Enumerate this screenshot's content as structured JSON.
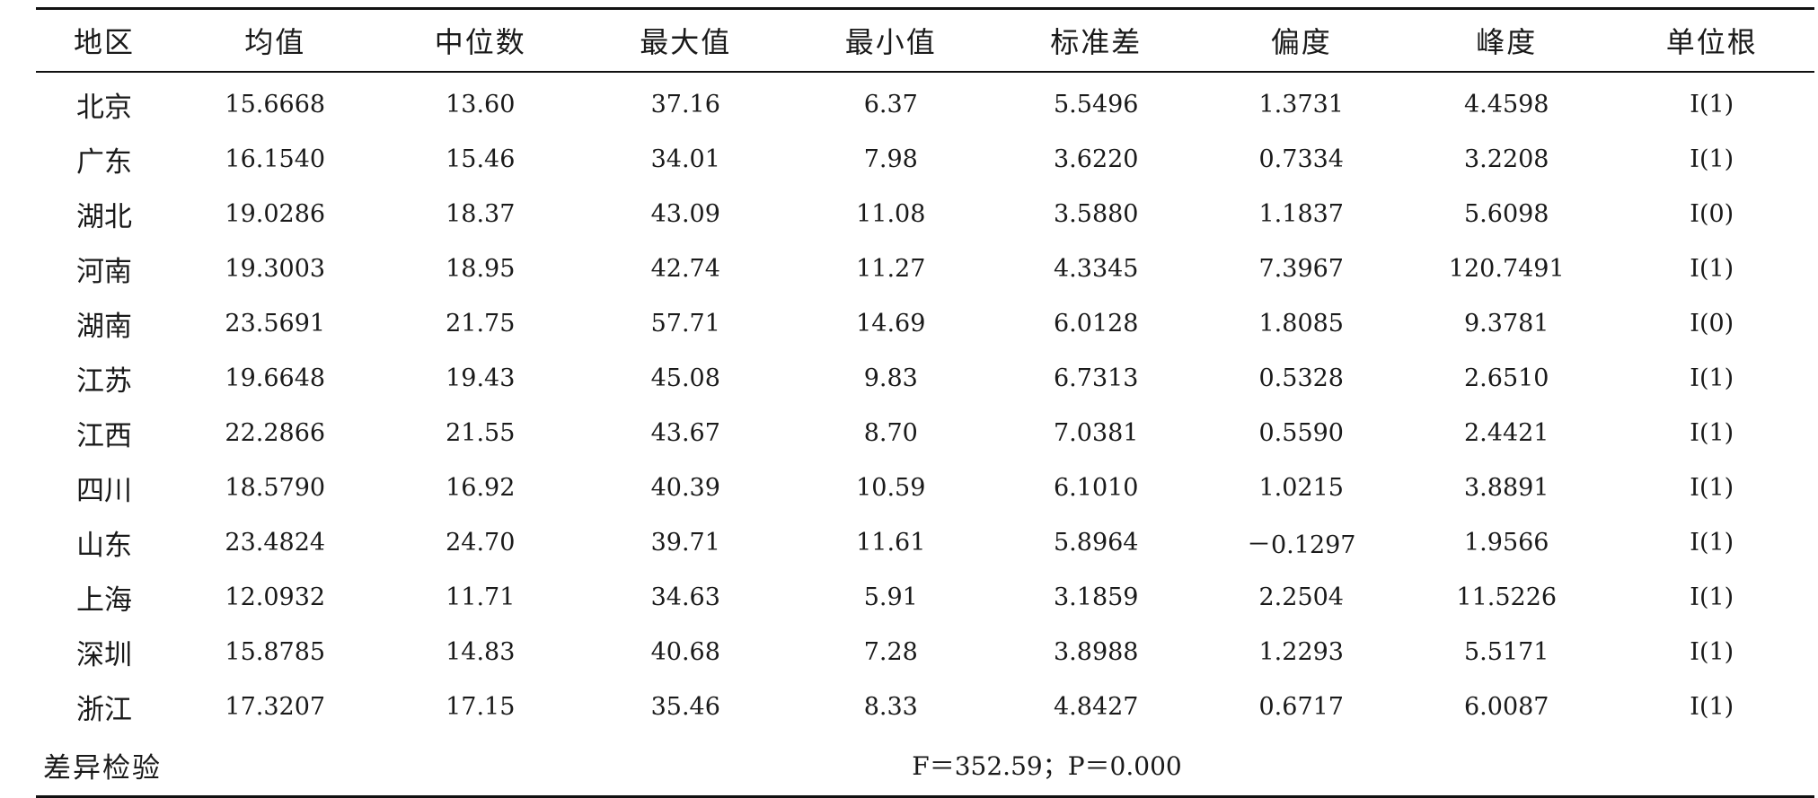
{
  "table": {
    "headers": [
      "地区",
      "均值",
      "中位数",
      "最大值",
      "最小值",
      "标准差",
      "偏度",
      "峰度",
      "单位根"
    ],
    "rows": [
      [
        "北京",
        "15.6668",
        "13.60",
        "37.16",
        "6.37",
        "5.5496",
        "1.3731",
        "4.4598",
        "I(1)"
      ],
      [
        "广东",
        "16.1540",
        "15.46",
        "34.01",
        "7.98",
        "3.6220",
        "0.7334",
        "3.2208",
        "I(1)"
      ],
      [
        "湖北",
        "19.0286",
        "18.37",
        "43.09",
        "11.08",
        "3.5880",
        "1.1837",
        "5.6098",
        "I(0)"
      ],
      [
        "河南",
        "19.3003",
        "18.95",
        "42.74",
        "11.27",
        "4.3345",
        "7.3967",
        "120.7491",
        "I(1)"
      ],
      [
        "湖南",
        "23.5691",
        "21.75",
        "57.71",
        "14.69",
        "6.0128",
        "1.8085",
        "9.3781",
        "I(0)"
      ],
      [
        "江苏",
        "19.6648",
        "19.43",
        "45.08",
        "9.83",
        "6.7313",
        "0.5328",
        "2.6510",
        "I(1)"
      ],
      [
        "江西",
        "22.2866",
        "21.55",
        "43.67",
        "8.70",
        "7.0381",
        "0.5590",
        "2.4421",
        "I(1)"
      ],
      [
        "四川",
        "18.5790",
        "16.92",
        "40.39",
        "10.59",
        "6.1010",
        "1.0215",
        "3.8891",
        "I(1)"
      ],
      [
        "山东",
        "23.4824",
        "24.70",
        "39.71",
        "11.61",
        "5.8964",
        "－0.1297",
        "1.9566",
        "I(1)"
      ],
      [
        "上海",
        "12.0932",
        "11.71",
        "34.63",
        "5.91",
        "3.1859",
        "2.2504",
        "11.5226",
        "I(1)"
      ],
      [
        "深圳",
        "15.8785",
        "14.83",
        "40.68",
        "7.28",
        "3.8988",
        "1.2293",
        "5.5171",
        "I(1)"
      ],
      [
        "浙江",
        "17.3207",
        "17.15",
        "35.46",
        "8.33",
        "4.8427",
        "0.6717",
        "6.0087",
        "I(1)"
      ]
    ],
    "footer": {
      "label": "差异检验",
      "value": "F＝352.59；P＝0.000"
    }
  }
}
